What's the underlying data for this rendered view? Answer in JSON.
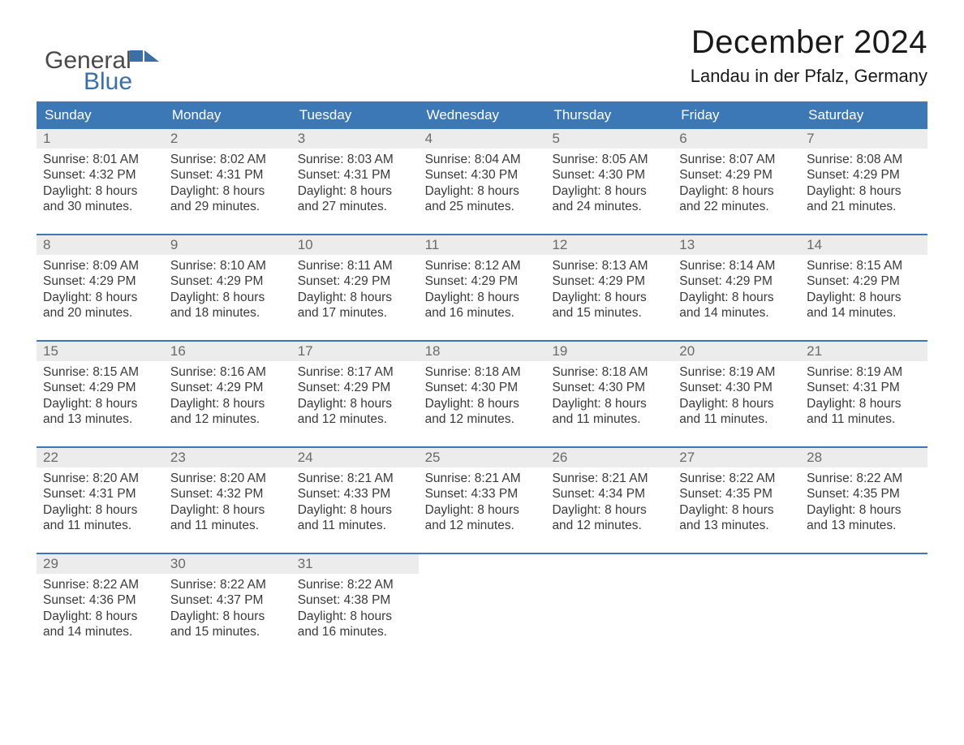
{
  "brand": {
    "word1": "General",
    "word2": "Blue"
  },
  "header": {
    "title": "December 2024",
    "subtitle": "Landau in der Pfalz, Germany"
  },
  "colors": {
    "header_bg": "#3b78b5",
    "header_text": "#ffffff",
    "daynum_bg": "#ececec",
    "daynum_text": "#6a6a6a",
    "body_text": "#3a3a3a",
    "rule": "#3b78b5",
    "page_bg": "#ffffff"
  },
  "typography": {
    "title_fontsize": 40,
    "subtitle_fontsize": 22,
    "dayname_fontsize": 17,
    "cell_fontsize": 15.5,
    "font_family": "Arial, Helvetica, sans-serif"
  },
  "daynames": [
    "Sunday",
    "Monday",
    "Tuesday",
    "Wednesday",
    "Thursday",
    "Friday",
    "Saturday"
  ],
  "labels": {
    "sunrise": "Sunrise:",
    "sunset": "Sunset:",
    "daylight_prefix": "Daylight:",
    "and": "and",
    "hours_word": "hours",
    "minutes_suffix": "minutes."
  },
  "weeks": [
    [
      {
        "n": "1",
        "sunrise": "8:01 AM",
        "sunset": "4:32 PM",
        "h": "8",
        "m": "30"
      },
      {
        "n": "2",
        "sunrise": "8:02 AM",
        "sunset": "4:31 PM",
        "h": "8",
        "m": "29"
      },
      {
        "n": "3",
        "sunrise": "8:03 AM",
        "sunset": "4:31 PM",
        "h": "8",
        "m": "27"
      },
      {
        "n": "4",
        "sunrise": "8:04 AM",
        "sunset": "4:30 PM",
        "h": "8",
        "m": "25"
      },
      {
        "n": "5",
        "sunrise": "8:05 AM",
        "sunset": "4:30 PM",
        "h": "8",
        "m": "24"
      },
      {
        "n": "6",
        "sunrise": "8:07 AM",
        "sunset": "4:29 PM",
        "h": "8",
        "m": "22"
      },
      {
        "n": "7",
        "sunrise": "8:08 AM",
        "sunset": "4:29 PM",
        "h": "8",
        "m": "21"
      }
    ],
    [
      {
        "n": "8",
        "sunrise": "8:09 AM",
        "sunset": "4:29 PM",
        "h": "8",
        "m": "20"
      },
      {
        "n": "9",
        "sunrise": "8:10 AM",
        "sunset": "4:29 PM",
        "h": "8",
        "m": "18"
      },
      {
        "n": "10",
        "sunrise": "8:11 AM",
        "sunset": "4:29 PM",
        "h": "8",
        "m": "17"
      },
      {
        "n": "11",
        "sunrise": "8:12 AM",
        "sunset": "4:29 PM",
        "h": "8",
        "m": "16"
      },
      {
        "n": "12",
        "sunrise": "8:13 AM",
        "sunset": "4:29 PM",
        "h": "8",
        "m": "15"
      },
      {
        "n": "13",
        "sunrise": "8:14 AM",
        "sunset": "4:29 PM",
        "h": "8",
        "m": "14"
      },
      {
        "n": "14",
        "sunrise": "8:15 AM",
        "sunset": "4:29 PM",
        "h": "8",
        "m": "14"
      }
    ],
    [
      {
        "n": "15",
        "sunrise": "8:15 AM",
        "sunset": "4:29 PM",
        "h": "8",
        "m": "13"
      },
      {
        "n": "16",
        "sunrise": "8:16 AM",
        "sunset": "4:29 PM",
        "h": "8",
        "m": "12"
      },
      {
        "n": "17",
        "sunrise": "8:17 AM",
        "sunset": "4:29 PM",
        "h": "8",
        "m": "12"
      },
      {
        "n": "18",
        "sunrise": "8:18 AM",
        "sunset": "4:30 PM",
        "h": "8",
        "m": "12"
      },
      {
        "n": "19",
        "sunrise": "8:18 AM",
        "sunset": "4:30 PM",
        "h": "8",
        "m": "11"
      },
      {
        "n": "20",
        "sunrise": "8:19 AM",
        "sunset": "4:30 PM",
        "h": "8",
        "m": "11"
      },
      {
        "n": "21",
        "sunrise": "8:19 AM",
        "sunset": "4:31 PM",
        "h": "8",
        "m": "11"
      }
    ],
    [
      {
        "n": "22",
        "sunrise": "8:20 AM",
        "sunset": "4:31 PM",
        "h": "8",
        "m": "11"
      },
      {
        "n": "23",
        "sunrise": "8:20 AM",
        "sunset": "4:32 PM",
        "h": "8",
        "m": "11"
      },
      {
        "n": "24",
        "sunrise": "8:21 AM",
        "sunset": "4:33 PM",
        "h": "8",
        "m": "11"
      },
      {
        "n": "25",
        "sunrise": "8:21 AM",
        "sunset": "4:33 PM",
        "h": "8",
        "m": "12"
      },
      {
        "n": "26",
        "sunrise": "8:21 AM",
        "sunset": "4:34 PM",
        "h": "8",
        "m": "12"
      },
      {
        "n": "27",
        "sunrise": "8:22 AM",
        "sunset": "4:35 PM",
        "h": "8",
        "m": "13"
      },
      {
        "n": "28",
        "sunrise": "8:22 AM",
        "sunset": "4:35 PM",
        "h": "8",
        "m": "13"
      }
    ],
    [
      {
        "n": "29",
        "sunrise": "8:22 AM",
        "sunset": "4:36 PM",
        "h": "8",
        "m": "14"
      },
      {
        "n": "30",
        "sunrise": "8:22 AM",
        "sunset": "4:37 PM",
        "h": "8",
        "m": "15"
      },
      {
        "n": "31",
        "sunrise": "8:22 AM",
        "sunset": "4:38 PM",
        "h": "8",
        "m": "16"
      },
      {
        "empty": true
      },
      {
        "empty": true
      },
      {
        "empty": true
      },
      {
        "empty": true
      }
    ]
  ]
}
